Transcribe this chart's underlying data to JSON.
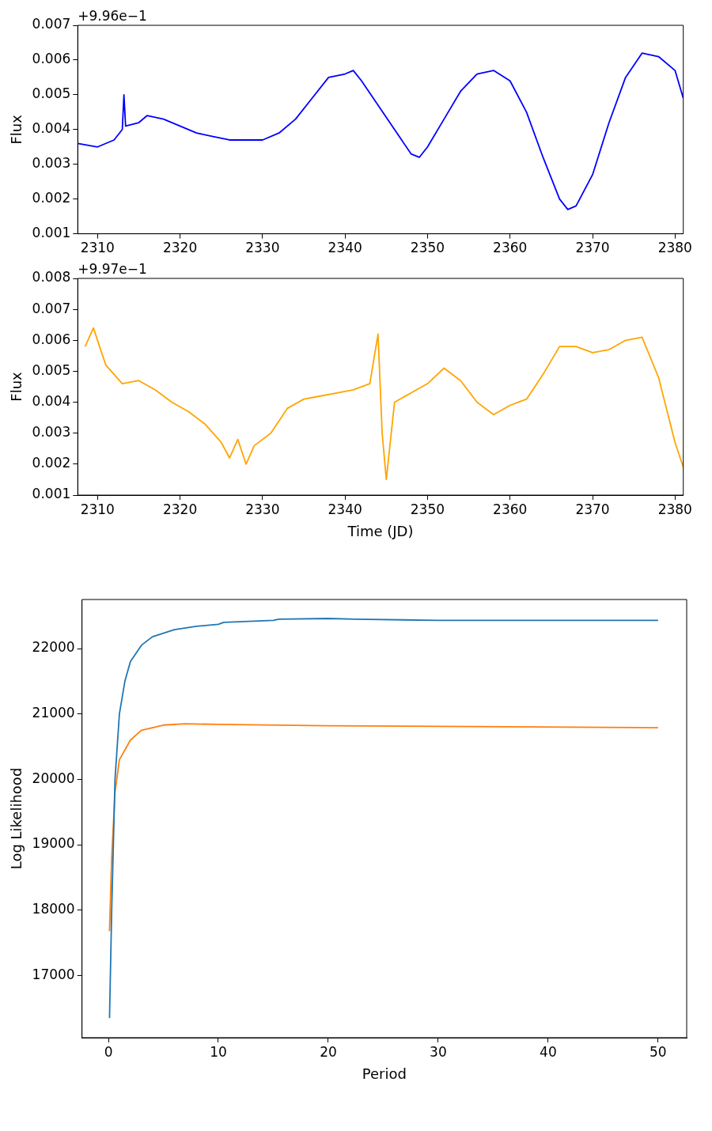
{
  "chart_data": [
    {
      "type": "line",
      "ylabel": "Flux",
      "annotations": [
        "+9.96e−1"
      ],
      "xlim": [
        2307.6,
        2381.0
      ],
      "ylim": [
        0.001,
        0.007
      ],
      "xticks": [
        2310,
        2320,
        2330,
        2340,
        2350,
        2360,
        2370,
        2380
      ],
      "yticks": [
        0.001,
        0.002,
        0.003,
        0.004,
        0.005,
        0.006,
        0.007
      ],
      "x": [
        2307.6,
        2310,
        2312,
        2313,
        2313.2,
        2313.4,
        2315,
        2316,
        2318,
        2320,
        2322,
        2324,
        2326,
        2328,
        2330,
        2332,
        2334,
        2336,
        2338,
        2340,
        2341,
        2342,
        2344,
        2346,
        2348,
        2349,
        2350,
        2352,
        2354,
        2356,
        2358,
        2360,
        2362,
        2364,
        2366,
        2367,
        2368,
        2370,
        2372,
        2374,
        2376,
        2378,
        2380,
        2381
      ],
      "series": [
        {
          "color": "#0000ff",
          "values": [
            0.0036,
            0.0035,
            0.0037,
            0.004,
            0.005,
            0.0041,
            0.0042,
            0.0044,
            0.0043,
            0.0041,
            0.0039,
            0.0038,
            0.0037,
            0.0037,
            0.0037,
            0.0039,
            0.0043,
            0.0049,
            0.0055,
            0.0056,
            0.0057,
            0.0054,
            0.0047,
            0.004,
            0.0033,
            0.0032,
            0.0035,
            0.0043,
            0.0051,
            0.0056,
            0.0057,
            0.0054,
            0.0045,
            0.0032,
            0.002,
            0.0017,
            0.0018,
            0.0027,
            0.0042,
            0.0055,
            0.0062,
            0.0061,
            0.0057,
            0.0049
          ]
        }
      ]
    },
    {
      "type": "line",
      "xlabel": "Time (JD)",
      "ylabel": "Flux",
      "annotations": [
        "+9.97e−1"
      ],
      "xlim": [
        2307.6,
        2381.0
      ],
      "ylim": [
        0.001,
        0.008
      ],
      "xticks": [
        2310,
        2320,
        2330,
        2340,
        2350,
        2360,
        2370,
        2380
      ],
      "yticks": [
        0.001,
        0.002,
        0.003,
        0.004,
        0.005,
        0.006,
        0.007,
        0.008
      ],
      "x": [
        2308.5,
        2309.5,
        2311,
        2313,
        2315,
        2317,
        2319,
        2321,
        2323,
        2325,
        2326,
        2327,
        2328,
        2329,
        2331,
        2333,
        2335,
        2337,
        2339,
        2341,
        2343,
        2344,
        2344.5,
        2345,
        2346,
        2348,
        2350,
        2352,
        2354,
        2356,
        2358,
        2360,
        2362,
        2364,
        2366,
        2368,
        2370,
        2372,
        2374,
        2376,
        2378,
        2380,
        2381
      ],
      "series": [
        {
          "color": "#ffa500",
          "values": [
            0.0058,
            0.0064,
            0.0052,
            0.0046,
            0.0047,
            0.0044,
            0.004,
            0.0037,
            0.0033,
            0.0027,
            0.0022,
            0.0028,
            0.002,
            0.0026,
            0.003,
            0.0038,
            0.0041,
            0.0042,
            0.0043,
            0.0044,
            0.0046,
            0.0062,
            0.003,
            0.0015,
            0.004,
            0.0043,
            0.0046,
            0.0051,
            0.0047,
            0.004,
            0.0036,
            0.0039,
            0.0041,
            0.0049,
            0.0058,
            0.0058,
            0.0056,
            0.0057,
            0.006,
            0.0061,
            0.0048,
            0.0027,
            0.0019
          ]
        }
      ]
    },
    {
      "type": "line",
      "xlabel": "Period",
      "ylabel": "Log Likelihood",
      "xlim": [
        -2.4,
        52.6
      ],
      "ylim": [
        16050,
        22750
      ],
      "xticks": [
        0,
        10,
        20,
        30,
        40,
        50
      ],
      "yticks": [
        17000,
        18000,
        19000,
        20000,
        21000,
        22000
      ],
      "series": [
        {
          "color": "#1f77b4",
          "x": [
            0.1,
            0.3,
            0.6,
            1,
            1.5,
            2,
            3,
            4,
            6,
            8,
            10,
            10.5,
            15,
            15.5,
            20,
            22.5,
            30,
            50
          ],
          "values": [
            16350,
            18000,
            20000,
            21000,
            21500,
            21800,
            22050,
            22180,
            22290,
            22340,
            22370,
            22400,
            22430,
            22450,
            22460,
            22450,
            22430,
            22430
          ]
        },
        {
          "color": "#ff7f0e",
          "x": [
            0.1,
            0.3,
            0.6,
            1,
            2,
            3,
            5,
            7,
            10,
            20,
            30,
            50
          ],
          "values": [
            17680,
            18800,
            19800,
            20300,
            20600,
            20750,
            20830,
            20850,
            20840,
            20820,
            20810,
            20790
          ]
        }
      ]
    }
  ]
}
